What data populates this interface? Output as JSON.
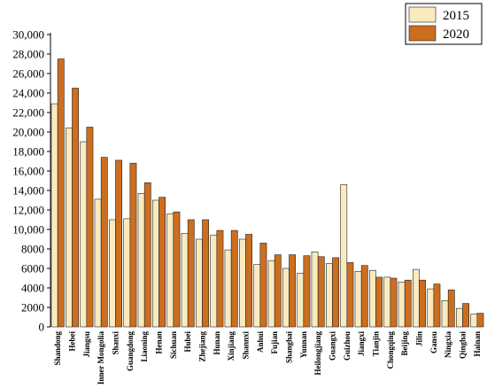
{
  "chart_data": {
    "type": "bar",
    "categories": [
      "Shandong",
      "Hebei",
      "Jiangsu",
      "Inner Mongolia",
      "Shanxi",
      "Guangdong",
      "Liaoning",
      "Henan",
      "Sichuan",
      "Hubei",
      "Zhejiang",
      "Hunan",
      "Xinjiang",
      "Shannxi",
      "Anhui",
      "Fujian",
      "Shanghai",
      "Yunnan",
      "Heilongjiang",
      "Guangxi",
      "Guizhou",
      "Jiangxi",
      "Tianjin",
      "Chongqing",
      "Beijing",
      "Jilin",
      "Gansu",
      "Ningxia",
      "Qinghai",
      "Hainan"
    ],
    "series": [
      {
        "name": "2015",
        "color": "#f9ebbf",
        "values": [
          22900,
          20400,
          19000,
          13100,
          11000,
          11100,
          13700,
          13000,
          11600,
          9600,
          9000,
          9400,
          7900,
          9000,
          6400,
          6800,
          6000,
          5500,
          7700,
          6500,
          14600,
          5700,
          5800,
          5100,
          4600,
          5900,
          3900,
          2700,
          1900,
          1300
        ]
      },
      {
        "name": "2020",
        "color": "#cc6e20",
        "values": [
          27500,
          24500,
          20500,
          17400,
          17100,
          16800,
          14800,
          13300,
          11800,
          11000,
          11000,
          9900,
          9900,
          9500,
          8600,
          7400,
          7400,
          7300,
          7200,
          7100,
          6600,
          6300,
          5100,
          5000,
          4800,
          4800,
          4400,
          3800,
          2400,
          1400
        ]
      }
    ],
    "ylim": [
      0,
      30000
    ],
    "yticks": [
      "0",
      "2000",
      "4000",
      "6000",
      "8000",
      "10,000",
      "12,000",
      "14,000",
      "16,000",
      "18,000",
      "20,000",
      "22,000",
      "24,000",
      "26,000",
      "28,000",
      "30,000"
    ],
    "legend_position": "top-right",
    "grid": false
  }
}
